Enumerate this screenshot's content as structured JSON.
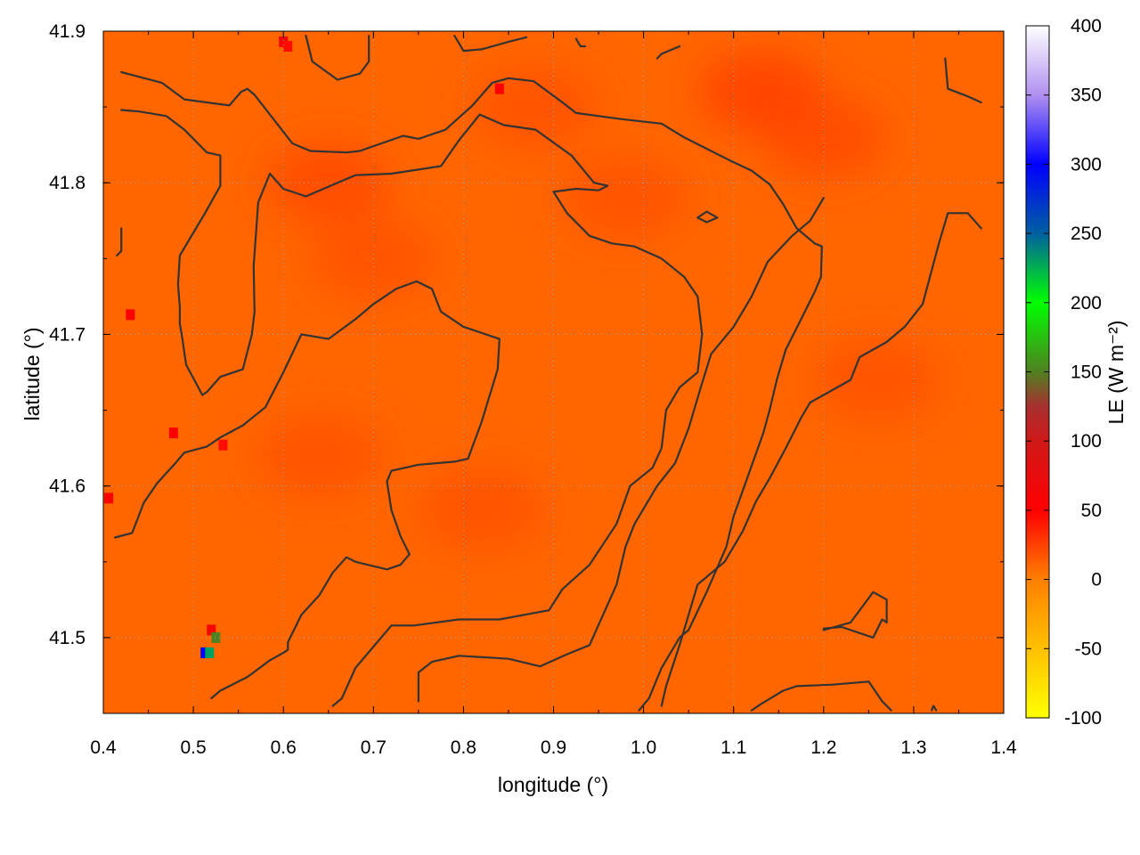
{
  "chart_data": {
    "type": "heatmap",
    "xlabel": "longitude (°)",
    "ylabel": "latitude (°)",
    "colorbar_label": "LE (W m⁻²)",
    "xlim": [
      0.4,
      1.4
    ],
    "ylim": [
      41.45,
      41.9
    ],
    "x_ticks": [
      "0.4",
      "0.5",
      "0.6",
      "0.7",
      "0.8",
      "0.9",
      "1.0",
      "1.1",
      "1.2",
      "1.3",
      "1.4"
    ],
    "y_ticks": [
      "41.5",
      "41.6",
      "41.7",
      "41.8",
      "41.9"
    ],
    "colorbar_ticks": [
      "-100",
      "-50",
      "0",
      "50",
      "100",
      "150",
      "200",
      "250",
      "300",
      "350",
      "400"
    ],
    "colorbar_range": [
      -100,
      400
    ],
    "background_value": 10,
    "colormap": [
      {
        "v": -100,
        "c": "#ffff00"
      },
      {
        "v": -50,
        "c": "#ffc000"
      },
      {
        "v": 0,
        "c": "#ff8000"
      },
      {
        "v": 50,
        "c": "#ff0000"
      },
      {
        "v": 100,
        "c": "#d01818"
      },
      {
        "v": 125,
        "c": "#a83030"
      },
      {
        "v": 150,
        "c": "#508020"
      },
      {
        "v": 200,
        "c": "#00ff00"
      },
      {
        "v": 250,
        "c": "#0060a0"
      },
      {
        "v": 300,
        "c": "#0000ff"
      },
      {
        "v": 350,
        "c": "#b090f0"
      },
      {
        "v": 400,
        "c": "#ffffff"
      }
    ],
    "hotspots": [
      {
        "x": 0.52,
        "y": 41.505,
        "v": 60
      },
      {
        "x": 0.525,
        "y": 41.5,
        "v": 150
      },
      {
        "x": 0.513,
        "y": 41.49,
        "v": 300
      },
      {
        "x": 0.518,
        "y": 41.49,
        "v": 230
      },
      {
        "x": 0.478,
        "y": 41.635,
        "v": 55
      },
      {
        "x": 0.43,
        "y": 41.713,
        "v": 50
      },
      {
        "x": 0.406,
        "y": 41.592,
        "v": 50
      },
      {
        "x": 0.533,
        "y": 41.627,
        "v": 45
      },
      {
        "x": 0.6,
        "y": 41.893,
        "v": 55
      },
      {
        "x": 0.84,
        "y": 41.862,
        "v": 55
      },
      {
        "x": 0.605,
        "y": 41.89,
        "v": 45
      }
    ],
    "warm_regions": [
      {
        "x": 1.13,
        "y": 41.86,
        "v": 28
      },
      {
        "x": 1.2,
        "y": 41.83,
        "v": 24
      },
      {
        "x": 0.65,
        "y": 41.8,
        "v": 24
      },
      {
        "x": 0.7,
        "y": 41.75,
        "v": 20
      },
      {
        "x": 0.64,
        "y": 41.62,
        "v": 20
      },
      {
        "x": 0.82,
        "y": 41.585,
        "v": 20
      },
      {
        "x": 0.98,
        "y": 41.79,
        "v": 20
      },
      {
        "x": 1.26,
        "y": 41.67,
        "v": 20
      },
      {
        "x": 0.88,
        "y": 41.85,
        "v": 20
      }
    ],
    "contours": [
      [
        [
          0.42,
          41.873
        ],
        [
          0.465,
          41.866
        ],
        [
          0.49,
          41.855
        ],
        [
          0.54,
          41.851
        ],
        [
          0.553,
          41.86
        ],
        [
          0.56,
          41.862
        ],
        [
          0.568,
          41.858
        ],
        [
          0.61,
          41.826
        ],
        [
          0.63,
          41.821
        ],
        [
          0.67,
          41.82
        ],
        [
          0.685,
          41.821
        ],
        [
          0.733,
          41.831
        ],
        [
          0.75,
          41.829
        ],
        [
          0.78,
          41.835
        ],
        [
          0.81,
          41.851
        ],
        [
          0.832,
          41.866
        ],
        [
          0.85,
          41.869
        ],
        [
          0.878,
          41.867
        ],
        [
          0.91,
          41.853
        ],
        [
          0.925,
          41.846
        ],
        [
          0.975,
          41.842
        ],
        [
          1.02,
          41.839
        ],
        [
          1.045,
          41.83
        ],
        [
          1.095,
          41.815
        ],
        [
          1.12,
          41.808
        ],
        [
          1.14,
          41.799
        ],
        [
          1.155,
          41.786
        ],
        [
          1.17,
          41.77
        ],
        [
          1.19,
          41.76
        ],
        [
          1.198,
          41.758
        ],
        [
          1.197,
          41.738
        ],
        [
          1.19,
          41.728
        ],
        [
          1.175,
          41.71
        ],
        [
          1.158,
          41.69
        ],
        [
          1.148,
          41.67
        ],
        [
          1.14,
          41.65
        ],
        [
          1.133,
          41.635
        ],
        [
          1.118,
          41.61
        ],
        [
          1.1,
          41.58
        ],
        [
          1.092,
          41.56
        ],
        [
          1.07,
          41.53
        ],
        [
          1.05,
          41.505
        ],
        [
          1.04,
          41.5
        ],
        [
          1.02,
          41.48
        ],
        [
          1.006,
          41.46
        ],
        [
          0.995,
          41.452
        ]
      ],
      [
        [
          0.42,
          41.848
        ],
        [
          0.44,
          41.847
        ],
        [
          0.47,
          41.844
        ],
        [
          0.49,
          41.835
        ],
        [
          0.515,
          41.82
        ],
        [
          0.53,
          41.818
        ],
        [
          0.53,
          41.798
        ],
        [
          0.513,
          41.78
        ],
        [
          0.485,
          41.752
        ],
        [
          0.483,
          41.733
        ],
        [
          0.485,
          41.718
        ],
        [
          0.485,
          41.707
        ],
        [
          0.487,
          41.7
        ],
        [
          0.492,
          41.68
        ],
        [
          0.51,
          41.66
        ],
        [
          0.515,
          41.662
        ],
        [
          0.53,
          41.672
        ],
        [
          0.555,
          41.677
        ],
        [
          0.565,
          41.7
        ],
        [
          0.568,
          41.715
        ],
        [
          0.567,
          41.745
        ],
        [
          0.572,
          41.787
        ],
        [
          0.585,
          41.806
        ],
        [
          0.6,
          41.796
        ],
        [
          0.625,
          41.791
        ],
        [
          0.66,
          41.8
        ],
        [
          0.68,
          41.805
        ],
        [
          0.72,
          41.806
        ],
        [
          0.775,
          41.811
        ],
        [
          0.795,
          41.828
        ],
        [
          0.818,
          41.845
        ],
        [
          0.845,
          41.838
        ],
        [
          0.88,
          41.835
        ],
        [
          0.92,
          41.818
        ],
        [
          0.945,
          41.8
        ],
        [
          0.96,
          41.798
        ],
        [
          0.95,
          41.795
        ],
        [
          0.925,
          41.796
        ],
        [
          0.9,
          41.794
        ],
        [
          0.915,
          41.78
        ],
        [
          0.94,
          41.765
        ],
        [
          0.965,
          41.76
        ],
        [
          0.99,
          41.758
        ],
        [
          1.02,
          41.75
        ],
        [
          1.045,
          41.738
        ],
        [
          1.06,
          41.725
        ],
        [
          1.065,
          41.7
        ],
        [
          1.06,
          41.675
        ],
        [
          1.04,
          41.665
        ],
        [
          1.025,
          41.65
        ],
        [
          1.02,
          41.625
        ],
        [
          1.01,
          41.612
        ],
        [
          0.985,
          41.6
        ],
        [
          0.97,
          41.575
        ],
        [
          0.94,
          41.548
        ],
        [
          0.91,
          41.532
        ],
        [
          0.895,
          41.518
        ],
        [
          0.84,
          41.512
        ],
        [
          0.795,
          41.512
        ],
        [
          0.745,
          41.508
        ],
        [
          0.72,
          41.508
        ],
        [
          0.68,
          41.48
        ],
        [
          0.665,
          41.46
        ],
        [
          0.655,
          41.455
        ]
      ],
      [
        [
          0.413,
          41.566
        ],
        [
          0.432,
          41.569
        ],
        [
          0.445,
          41.589
        ],
        [
          0.46,
          41.602
        ],
        [
          0.48,
          41.615
        ],
        [
          0.49,
          41.622
        ],
        [
          0.515,
          41.626
        ],
        [
          0.53,
          41.632
        ],
        [
          0.555,
          41.64
        ],
        [
          0.58,
          41.652
        ],
        [
          0.6,
          41.675
        ],
        [
          0.62,
          41.7
        ],
        [
          0.65,
          41.697
        ],
        [
          0.68,
          41.71
        ],
        [
          0.7,
          41.72
        ],
        [
          0.725,
          41.73
        ],
        [
          0.748,
          41.735
        ],
        [
          0.765,
          41.73
        ],
        [
          0.775,
          41.715
        ],
        [
          0.8,
          41.705
        ],
        [
          0.84,
          41.697
        ],
        [
          0.838,
          41.677
        ],
        [
          0.82,
          41.642
        ],
        [
          0.805,
          41.618
        ],
        [
          0.79,
          41.616
        ],
        [
          0.75,
          41.614
        ],
        [
          0.72,
          41.61
        ],
        [
          0.715,
          41.603
        ],
        [
          0.72,
          41.584
        ],
        [
          0.73,
          41.567
        ],
        [
          0.74,
          41.555
        ],
        [
          0.73,
          41.548
        ],
        [
          0.715,
          41.545
        ],
        [
          0.68,
          41.55
        ],
        [
          0.67,
          41.553
        ],
        [
          0.655,
          41.543
        ],
        [
          0.64,
          41.528
        ],
        [
          0.62,
          41.515
        ],
        [
          0.605,
          41.497
        ],
        [
          0.605,
          41.492
        ],
        [
          0.6,
          41.49
        ],
        [
          0.585,
          41.485
        ],
        [
          0.56,
          41.474
        ],
        [
          0.53,
          41.465
        ],
        [
          0.52,
          41.46
        ]
      ],
      [
        [
          0.75,
          41.458
        ],
        [
          0.75,
          41.477
        ],
        [
          0.765,
          41.484
        ],
        [
          0.795,
          41.488
        ],
        [
          0.85,
          41.486
        ],
        [
          0.885,
          41.481
        ],
        [
          0.915,
          41.489
        ],
        [
          0.94,
          41.495
        ],
        [
          0.97,
          41.535
        ],
        [
          0.98,
          41.56
        ],
        [
          0.99,
          41.575
        ],
        [
          1.015,
          41.6
        ],
        [
          1.035,
          41.615
        ],
        [
          1.05,
          41.638
        ],
        [
          1.063,
          41.664
        ],
        [
          1.075,
          41.687
        ],
        [
          1.1,
          41.705
        ],
        [
          1.12,
          41.725
        ],
        [
          1.138,
          41.748
        ],
        [
          1.165,
          41.765
        ],
        [
          1.185,
          41.775
        ],
        [
          1.195,
          41.785
        ],
        [
          1.2,
          41.79
        ]
      ],
      [
        [
          1.12,
          41.452
        ],
        [
          1.13,
          41.456
        ],
        [
          1.155,
          41.465
        ],
        [
          1.17,
          41.468
        ],
        [
          1.21,
          41.469
        ],
        [
          1.25,
          41.471
        ],
        [
          1.265,
          41.458
        ],
        [
          1.275,
          41.452
        ]
      ],
      [
        [
          1.02,
          41.455
        ],
        [
          1.025,
          41.468
        ],
        [
          1.04,
          41.495
        ],
        [
          1.06,
          41.535
        ],
        [
          1.09,
          41.55
        ],
        [
          1.11,
          41.57
        ],
        [
          1.125,
          41.59
        ],
        [
          1.14,
          41.605
        ],
        [
          1.158,
          41.625
        ],
        [
          1.175,
          41.645
        ],
        [
          1.185,
          41.655
        ],
        [
          1.23,
          41.67
        ],
        [
          1.24,
          41.685
        ],
        [
          1.27,
          41.695
        ],
        [
          1.29,
          41.705
        ],
        [
          1.31,
          41.72
        ],
        [
          1.328,
          41.76
        ],
        [
          1.338,
          41.78
        ],
        [
          1.36,
          41.78
        ],
        [
          1.375,
          41.77
        ]
      ],
      [
        [
          1.2,
          41.506
        ],
        [
          1.22,
          41.507
        ],
        [
          1.255,
          41.5
        ],
        [
          1.265,
          41.512
        ],
        [
          1.27,
          41.51
        ],
        [
          1.27,
          41.525
        ],
        [
          1.255,
          41.53
        ],
        [
          1.23,
          41.51
        ],
        [
          1.2,
          41.505
        ]
      ],
      [
        [
          1.06,
          41.777
        ],
        [
          1.07,
          41.781
        ],
        [
          1.082,
          41.777
        ],
        [
          1.07,
          41.774
        ],
        [
          1.06,
          41.777
        ]
      ],
      [
        [
          0.415,
          41.752
        ],
        [
          0.42,
          41.755
        ],
        [
          0.42,
          41.77
        ]
      ],
      [
        [
          0.625,
          41.897
        ],
        [
          0.632,
          41.88
        ],
        [
          0.66,
          41.868
        ],
        [
          0.685,
          41.872
        ],
        [
          0.695,
          41.88
        ],
        [
          0.695,
          41.897
        ]
      ],
      [
        [
          0.79,
          41.897
        ],
        [
          0.8,
          41.887
        ],
        [
          0.82,
          41.888
        ],
        [
          0.85,
          41.893
        ],
        [
          0.87,
          41.896
        ]
      ],
      [
        [
          0.925,
          41.895
        ],
        [
          0.93,
          41.89
        ],
        [
          0.935,
          41.89
        ]
      ],
      [
        [
          1.015,
          41.882
        ],
        [
          1.02,
          41.885
        ],
        [
          1.04,
          41.89
        ]
      ],
      [
        [
          1.335,
          41.882
        ],
        [
          1.338,
          41.862
        ],
        [
          1.36,
          41.857
        ],
        [
          1.375,
          41.853
        ]
      ],
      [
        [
          1.32,
          41.452
        ],
        [
          1.322,
          41.455
        ],
        [
          1.325,
          41.452
        ]
      ]
    ]
  }
}
